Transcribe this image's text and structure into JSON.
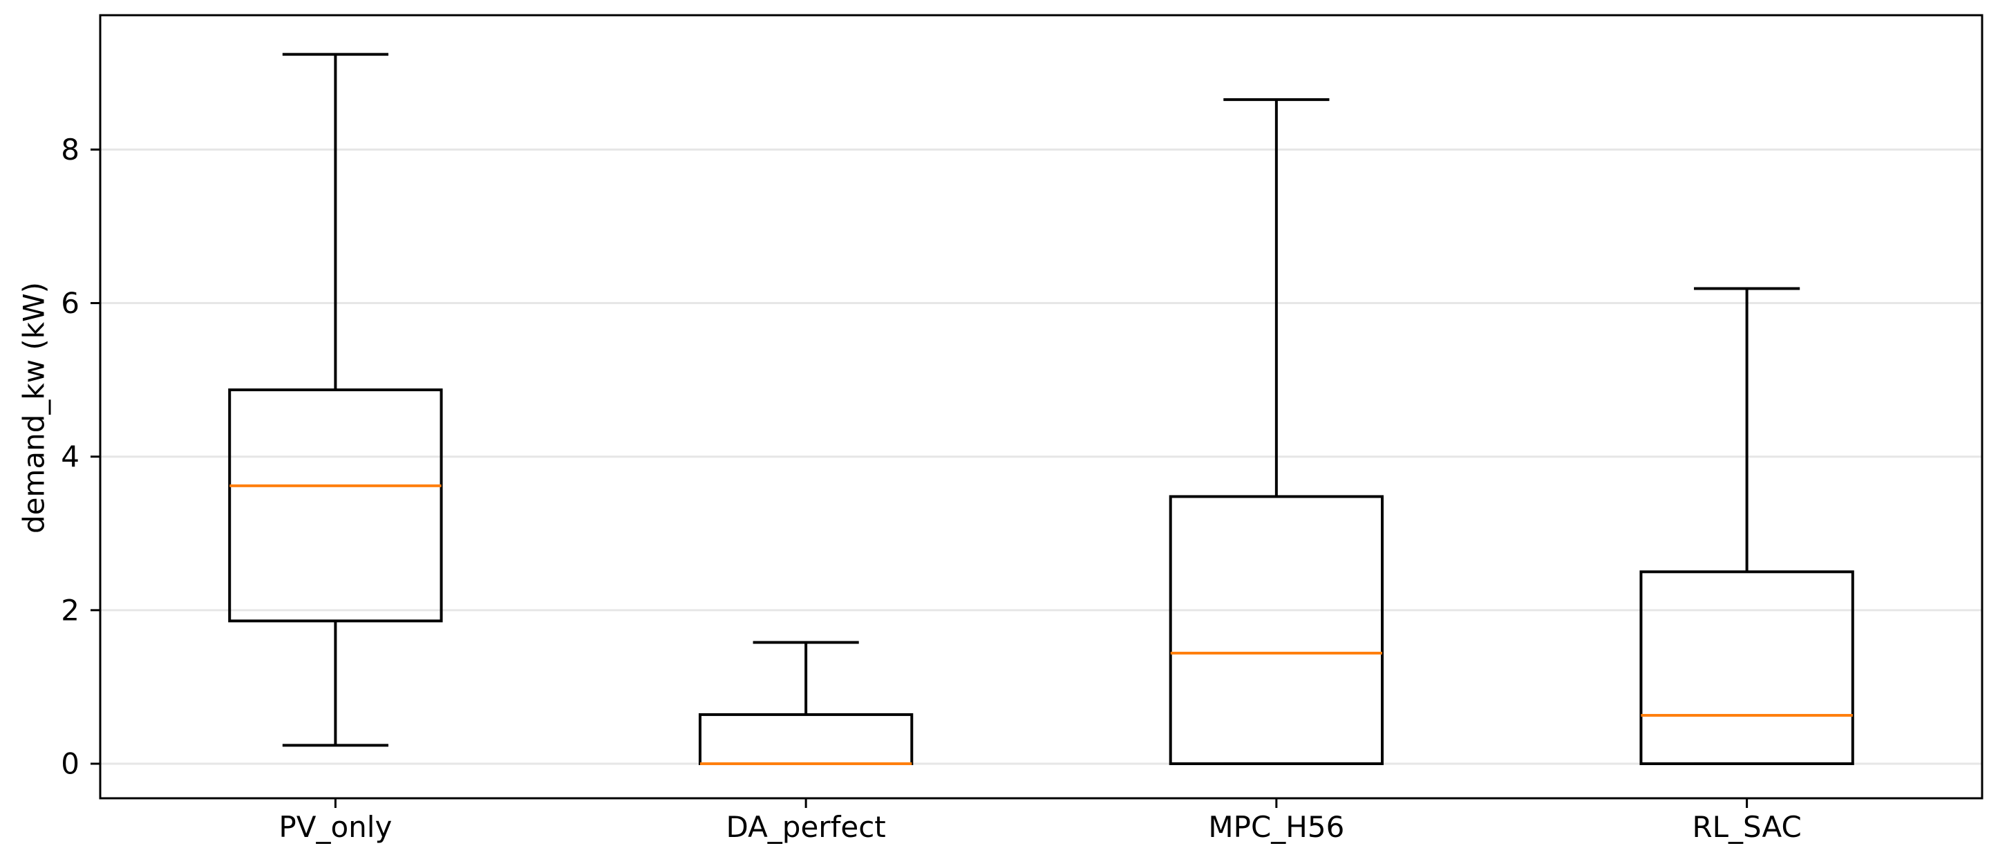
{
  "chart_data": {
    "type": "box",
    "title": "",
    "xlabel": "",
    "ylabel": "demand_kw (kW)",
    "ylim": [
      -0.45,
      9.75
    ],
    "yticks": [
      0,
      2,
      4,
      6,
      8
    ],
    "grid": "horizontal",
    "categories": [
      "PV_only",
      "DA_perfect",
      "MPC_H56",
      "RL_SAC"
    ],
    "boxes": [
      {
        "label": "PV_only",
        "whisker_low": 0.24,
        "q1": 1.86,
        "median": 3.62,
        "q3": 4.87,
        "whisker_high": 9.24
      },
      {
        "label": "DA_perfect",
        "whisker_low": 0.0,
        "q1": 0.0,
        "median": 0.0,
        "q3": 0.64,
        "whisker_high": 1.58
      },
      {
        "label": "MPC_H56",
        "whisker_low": 0.0,
        "q1": 0.0,
        "median": 1.44,
        "q3": 3.48,
        "whisker_high": 8.65
      },
      {
        "label": "RL_SAC",
        "whisker_low": 0.0,
        "q1": 0.0,
        "median": 0.63,
        "q3": 2.5,
        "whisker_high": 6.19
      }
    ],
    "colors": {
      "box": "#000000",
      "median": "#ff7f0e",
      "grid": "#e6e6e6"
    }
  }
}
